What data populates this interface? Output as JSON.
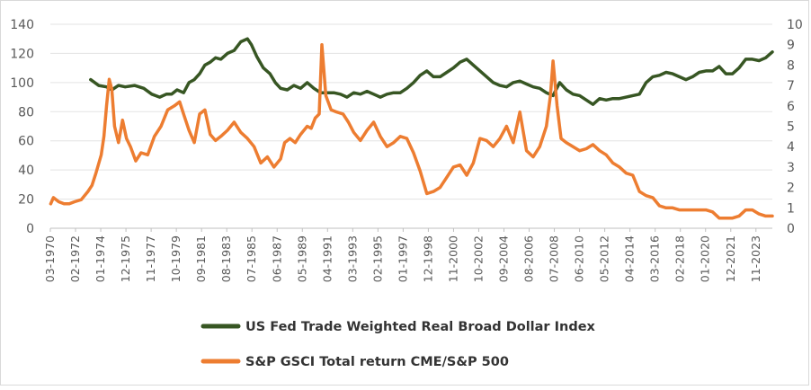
{
  "chart_data": {
    "type": "line",
    "title": "",
    "x_tick_labels": [
      "03-1970",
      "02-1972",
      "01-1974",
      "12-1975",
      "11-1977",
      "10-1979",
      "09-1981",
      "08-1983",
      "07-1985",
      "06-1987",
      "05-1989",
      "04-1991",
      "03-1993",
      "02-1995",
      "01-1997",
      "12-1998",
      "11-2000",
      "10-2002",
      "09-2004",
      "08-2006",
      "07-2008",
      "06-2010",
      "05-2012",
      "04-2014",
      "03-2016",
      "02-2018",
      "01-2020",
      "12-2021",
      "11-2023"
    ],
    "x_range": [
      1970.17,
      2024.5
    ],
    "y_left": {
      "ticks": [
        0,
        20,
        40,
        60,
        80,
        100,
        120,
        140
      ],
      "range": [
        0,
        140
      ]
    },
    "y_right": {
      "ticks": [
        0,
        1,
        2,
        3,
        4,
        5,
        6,
        7,
        8,
        9,
        10
      ],
      "range": [
        0,
        10
      ]
    },
    "series": [
      {
        "name": "US Fed Trade Weighted Real Broad Dollar Index",
        "axis": "left",
        "color": "#375623",
        "x": [
          1973.2,
          1973.8,
          1974.4,
          1974.8,
          1975.3,
          1975.8,
          1976.5,
          1977.2,
          1977.8,
          1978.4,
          1978.9,
          1979.3,
          1979.7,
          1980.2,
          1980.6,
          1981.0,
          1981.4,
          1981.8,
          1982.2,
          1982.6,
          1983.0,
          1983.5,
          1984.0,
          1984.5,
          1985.0,
          1985.3,
          1985.7,
          1986.2,
          1986.7,
          1987.1,
          1987.5,
          1988.0,
          1988.5,
          1989.0,
          1989.5,
          1990.0,
          1990.5,
          1991.0,
          1991.5,
          1992.0,
          1992.5,
          1993.0,
          1993.5,
          1994.0,
          1994.5,
          1995.0,
          1995.5,
          1996.0,
          1996.5,
          1997.0,
          1997.5,
          1998.0,
          1998.5,
          1999.0,
          1999.5,
          2000.0,
          2000.5,
          2001.0,
          2001.5,
          2002.0,
          2002.5,
          2003.0,
          2003.5,
          2004.0,
          2004.5,
          2005.0,
          2005.5,
          2006.0,
          2006.5,
          2007.0,
          2007.5,
          2008.0,
          2008.5,
          2009.0,
          2009.5,
          2010.0,
          2010.5,
          2011.0,
          2011.5,
          2012.0,
          2012.5,
          2013.0,
          2013.5,
          2014.0,
          2014.5,
          2015.0,
          2015.5,
          2016.0,
          2016.5,
          2017.0,
          2017.5,
          2018.0,
          2018.5,
          2019.0,
          2019.5,
          2020.0,
          2020.5,
          2021.0,
          2021.5,
          2022.0,
          2022.5,
          2023.0,
          2023.5,
          2024.0,
          2024.5
        ],
        "values": [
          102,
          98,
          97,
          95,
          98,
          97,
          98,
          96,
          92,
          90,
          92,
          92,
          95,
          93,
          100,
          102,
          106,
          112,
          114,
          117,
          116,
          120,
          122,
          128,
          130,
          126,
          118,
          110,
          106,
          100,
          96,
          95,
          98,
          96,
          100,
          96,
          93,
          93,
          93,
          92,
          90,
          93,
          92,
          94,
          92,
          90,
          92,
          93,
          93,
          96,
          100,
          105,
          108,
          104,
          104,
          107,
          110,
          114,
          116,
          112,
          108,
          104,
          100,
          98,
          97,
          100,
          101,
          99,
          97,
          96,
          93,
          91,
          100,
          95,
          92,
          91,
          88,
          85,
          89,
          88,
          89,
          89,
          90,
          91,
          92,
          100,
          104,
          105,
          107,
          106,
          104,
          102,
          104,
          107,
          108,
          108,
          111,
          106,
          106,
          110,
          116,
          116,
          115,
          117,
          121
        ]
      },
      {
        "name": "S&P GSCI Total return CME/S&P 500",
        "axis": "right",
        "color": "#ED7D31",
        "x": [
          1970.2,
          1970.4,
          1970.8,
          1971.2,
          1971.6,
          1972.0,
          1972.5,
          1973.0,
          1973.3,
          1973.6,
          1974.0,
          1974.2,
          1974.4,
          1974.6,
          1974.8,
          1975.0,
          1975.3,
          1975.6,
          1975.9,
          1976.2,
          1976.6,
          1977.0,
          1977.5,
          1978.0,
          1978.5,
          1979.0,
          1979.5,
          1979.9,
          1980.2,
          1980.6,
          1981.0,
          1981.4,
          1981.8,
          1982.2,
          1982.6,
          1983.0,
          1983.5,
          1984.0,
          1984.5,
          1985.0,
          1985.5,
          1986.0,
          1986.5,
          1987.0,
          1987.5,
          1987.8,
          1988.2,
          1988.6,
          1989.0,
          1989.5,
          1989.8,
          1990.1,
          1990.4,
          1990.6,
          1990.9,
          1991.3,
          1991.7,
          1992.2,
          1992.6,
          1993.0,
          1993.5,
          1994.0,
          1994.5,
          1995.0,
          1995.5,
          1996.0,
          1996.5,
          1997.0,
          1997.5,
          1998.0,
          1998.5,
          1999.0,
          1999.5,
          2000.0,
          2000.5,
          2001.0,
          2001.5,
          2002.0,
          2002.5,
          2003.0,
          2003.5,
          2004.0,
          2004.5,
          2005.0,
          2005.5,
          2006.0,
          2006.5,
          2007.0,
          2007.5,
          2007.8,
          2008.0,
          2008.3,
          2008.6,
          2009.0,
          2009.5,
          2010.0,
          2010.5,
          2011.0,
          2011.5,
          2012.0,
          2012.5,
          2013.0,
          2013.5,
          2014.0,
          2014.5,
          2015.0,
          2015.5,
          2016.0,
          2016.5,
          2017.0,
          2017.5,
          2018.0,
          2018.5,
          2019.0,
          2019.5,
          2020.0,
          2020.5,
          2021.0,
          2021.5,
          2022.0,
          2022.5,
          2023.0,
          2023.5,
          2024.0,
          2024.5
        ],
        "values": [
          1.2,
          1.5,
          1.3,
          1.2,
          1.2,
          1.3,
          1.4,
          1.8,
          2.1,
          2.7,
          3.6,
          4.5,
          6.0,
          7.3,
          6.8,
          5.0,
          4.2,
          5.3,
          4.4,
          4.0,
          3.3,
          3.7,
          3.6,
          4.5,
          5.0,
          5.8,
          6.0,
          6.2,
          5.6,
          4.8,
          4.2,
          5.6,
          5.8,
          4.6,
          4.3,
          4.5,
          4.8,
          5.2,
          4.7,
          4.4,
          4.0,
          3.2,
          3.5,
          3.0,
          3.4,
          4.2,
          4.4,
          4.2,
          4.6,
          5.0,
          4.9,
          5.4,
          5.6,
          9.0,
          6.5,
          5.8,
          5.7,
          5.6,
          5.2,
          4.7,
          4.3,
          4.8,
          5.2,
          4.5,
          4.0,
          4.2,
          4.5,
          4.4,
          3.7,
          2.8,
          1.7,
          1.8,
          2.0,
          2.5,
          3.0,
          3.1,
          2.6,
          3.2,
          4.4,
          4.3,
          4.0,
          4.4,
          5.0,
          4.2,
          5.7,
          3.8,
          3.5,
          4.0,
          5.0,
          6.5,
          8.2,
          6.0,
          4.4,
          4.2,
          4.0,
          3.8,
          3.9,
          4.1,
          3.8,
          3.6,
          3.2,
          3.0,
          2.7,
          2.6,
          1.8,
          1.6,
          1.5,
          1.1,
          1.0,
          1.0,
          0.9,
          0.9,
          0.9,
          0.9,
          0.9,
          0.8,
          0.5,
          0.5,
          0.5,
          0.6,
          0.9,
          0.9,
          0.7,
          0.6,
          0.6
        ]
      }
    ],
    "legend": [
      "US Fed Trade Weighted Real Broad Dollar Index",
      "S&P GSCI Total return CME/S&P 500"
    ],
    "legend_position": "bottom",
    "grid": "horizontal"
  }
}
